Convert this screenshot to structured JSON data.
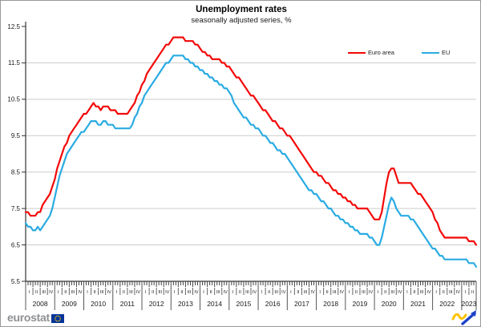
{
  "title": "Unemployment rates",
  "subtitle": "seasonally adjusted series, %",
  "branding": {
    "wordmark": "eurostat",
    "eu_flag_icon": "eu-flag-icon",
    "euroindicators_icon": "euroindicators-swoosh-icon",
    "flag_blue": "#003399",
    "flag_yellow": "#ffcc00"
  },
  "colors": {
    "euro_area": "#f40808",
    "eu": "#29abe2",
    "grid": "#cccccc",
    "axis": "#333333",
    "text": "#1a1a1a"
  },
  "chart_data": {
    "type": "line",
    "title": "Unemployment rates",
    "subtitle": "seasonally adjusted series, %",
    "frequency": "monthly",
    "x_start": "2008-01",
    "x_end": "2023-07",
    "grid": "horizontal",
    "legend_position": "top-right",
    "ylim": [
      5.5,
      12.5
    ],
    "yticks": [
      5.5,
      6.5,
      7.5,
      8.5,
      9.5,
      10.5,
      11.5,
      12.5
    ],
    "x_axis": {
      "years": [
        2008,
        2009,
        2010,
        2011,
        2012,
        2013,
        2014,
        2015,
        2016,
        2017,
        2018,
        2019,
        2020,
        2021,
        2022,
        2023
      ],
      "quarter_labels": [
        "I",
        "II",
        "III",
        "IV"
      ]
    },
    "series": [
      {
        "name": "Euro area",
        "color": "#f40808",
        "values": [
          7.4,
          7.4,
          7.3,
          7.3,
          7.3,
          7.4,
          7.4,
          7.6,
          7.7,
          7.8,
          7.9,
          8.1,
          8.3,
          8.6,
          8.8,
          9.0,
          9.2,
          9.3,
          9.5,
          9.6,
          9.7,
          9.8,
          9.9,
          10.0,
          10.1,
          10.1,
          10.2,
          10.3,
          10.4,
          10.3,
          10.3,
          10.2,
          10.3,
          10.3,
          10.3,
          10.2,
          10.2,
          10.2,
          10.1,
          10.1,
          10.1,
          10.1,
          10.1,
          10.2,
          10.3,
          10.4,
          10.6,
          10.7,
          10.9,
          11.0,
          11.2,
          11.3,
          11.4,
          11.5,
          11.6,
          11.7,
          11.8,
          11.9,
          12.0,
          12.0,
          12.1,
          12.2,
          12.2,
          12.2,
          12.2,
          12.2,
          12.1,
          12.1,
          12.1,
          12.1,
          12.0,
          12.0,
          11.9,
          11.8,
          11.8,
          11.7,
          11.7,
          11.6,
          11.6,
          11.6,
          11.6,
          11.5,
          11.5,
          11.4,
          11.4,
          11.3,
          11.2,
          11.1,
          11.1,
          11.0,
          10.9,
          10.8,
          10.7,
          10.6,
          10.6,
          10.5,
          10.4,
          10.3,
          10.2,
          10.2,
          10.1,
          10.0,
          9.9,
          9.9,
          9.8,
          9.7,
          9.7,
          9.6,
          9.5,
          9.5,
          9.4,
          9.3,
          9.2,
          9.1,
          9.0,
          8.9,
          8.8,
          8.7,
          8.6,
          8.5,
          8.5,
          8.4,
          8.4,
          8.3,
          8.2,
          8.2,
          8.1,
          8.0,
          8.0,
          7.9,
          7.9,
          7.8,
          7.8,
          7.7,
          7.7,
          7.6,
          7.6,
          7.5,
          7.5,
          7.5,
          7.5,
          7.5,
          7.4,
          7.3,
          7.2,
          7.2,
          7.2,
          7.4,
          7.8,
          8.2,
          8.5,
          8.6,
          8.6,
          8.4,
          8.2,
          8.2,
          8.2,
          8.2,
          8.2,
          8.2,
          8.1,
          8.0,
          7.9,
          7.9,
          7.8,
          7.7,
          7.6,
          7.5,
          7.4,
          7.2,
          7.1,
          6.9,
          6.8,
          6.7,
          6.7,
          6.7,
          6.7,
          6.7,
          6.7,
          6.7,
          6.7,
          6.7,
          6.7,
          6.6,
          6.6,
          6.6,
          6.5
        ]
      },
      {
        "name": "EU",
        "color": "#29abe2",
        "values": [
          7.1,
          7.0,
          7.0,
          6.9,
          6.9,
          7.0,
          6.9,
          7.0,
          7.1,
          7.2,
          7.3,
          7.5,
          7.8,
          8.1,
          8.4,
          8.6,
          8.8,
          9.0,
          9.1,
          9.2,
          9.3,
          9.4,
          9.5,
          9.6,
          9.6,
          9.7,
          9.8,
          9.9,
          9.9,
          9.9,
          9.8,
          9.8,
          9.9,
          9.9,
          9.8,
          9.8,
          9.8,
          9.7,
          9.7,
          9.7,
          9.7,
          9.7,
          9.7,
          9.7,
          9.8,
          10.0,
          10.1,
          10.3,
          10.4,
          10.6,
          10.7,
          10.8,
          10.9,
          11.0,
          11.1,
          11.2,
          11.3,
          11.4,
          11.5,
          11.5,
          11.6,
          11.7,
          11.7,
          11.7,
          11.7,
          11.7,
          11.6,
          11.6,
          11.5,
          11.5,
          11.4,
          11.4,
          11.3,
          11.3,
          11.2,
          11.2,
          11.1,
          11.1,
          11.0,
          11.0,
          10.9,
          10.9,
          10.8,
          10.8,
          10.7,
          10.6,
          10.4,
          10.3,
          10.2,
          10.1,
          10.0,
          10.0,
          9.9,
          9.8,
          9.8,
          9.7,
          9.7,
          9.6,
          9.5,
          9.5,
          9.4,
          9.3,
          9.3,
          9.2,
          9.1,
          9.1,
          9.0,
          9.0,
          8.9,
          8.8,
          8.7,
          8.6,
          8.5,
          8.4,
          8.3,
          8.2,
          8.1,
          8.0,
          8.0,
          7.9,
          7.9,
          7.8,
          7.7,
          7.7,
          7.6,
          7.5,
          7.5,
          7.4,
          7.3,
          7.3,
          7.2,
          7.2,
          7.1,
          7.1,
          7.0,
          7.0,
          6.9,
          6.9,
          6.8,
          6.8,
          6.8,
          6.8,
          6.7,
          6.7,
          6.6,
          6.5,
          6.5,
          6.7,
          7.0,
          7.3,
          7.6,
          7.8,
          7.7,
          7.5,
          7.4,
          7.3,
          7.3,
          7.3,
          7.3,
          7.2,
          7.2,
          7.1,
          7.0,
          6.9,
          6.8,
          6.7,
          6.6,
          6.5,
          6.4,
          6.4,
          6.3,
          6.2,
          6.2,
          6.1,
          6.1,
          6.1,
          6.1,
          6.1,
          6.1,
          6.1,
          6.1,
          6.1,
          6.1,
          6.0,
          6.0,
          6.0,
          5.9
        ]
      }
    ]
  }
}
